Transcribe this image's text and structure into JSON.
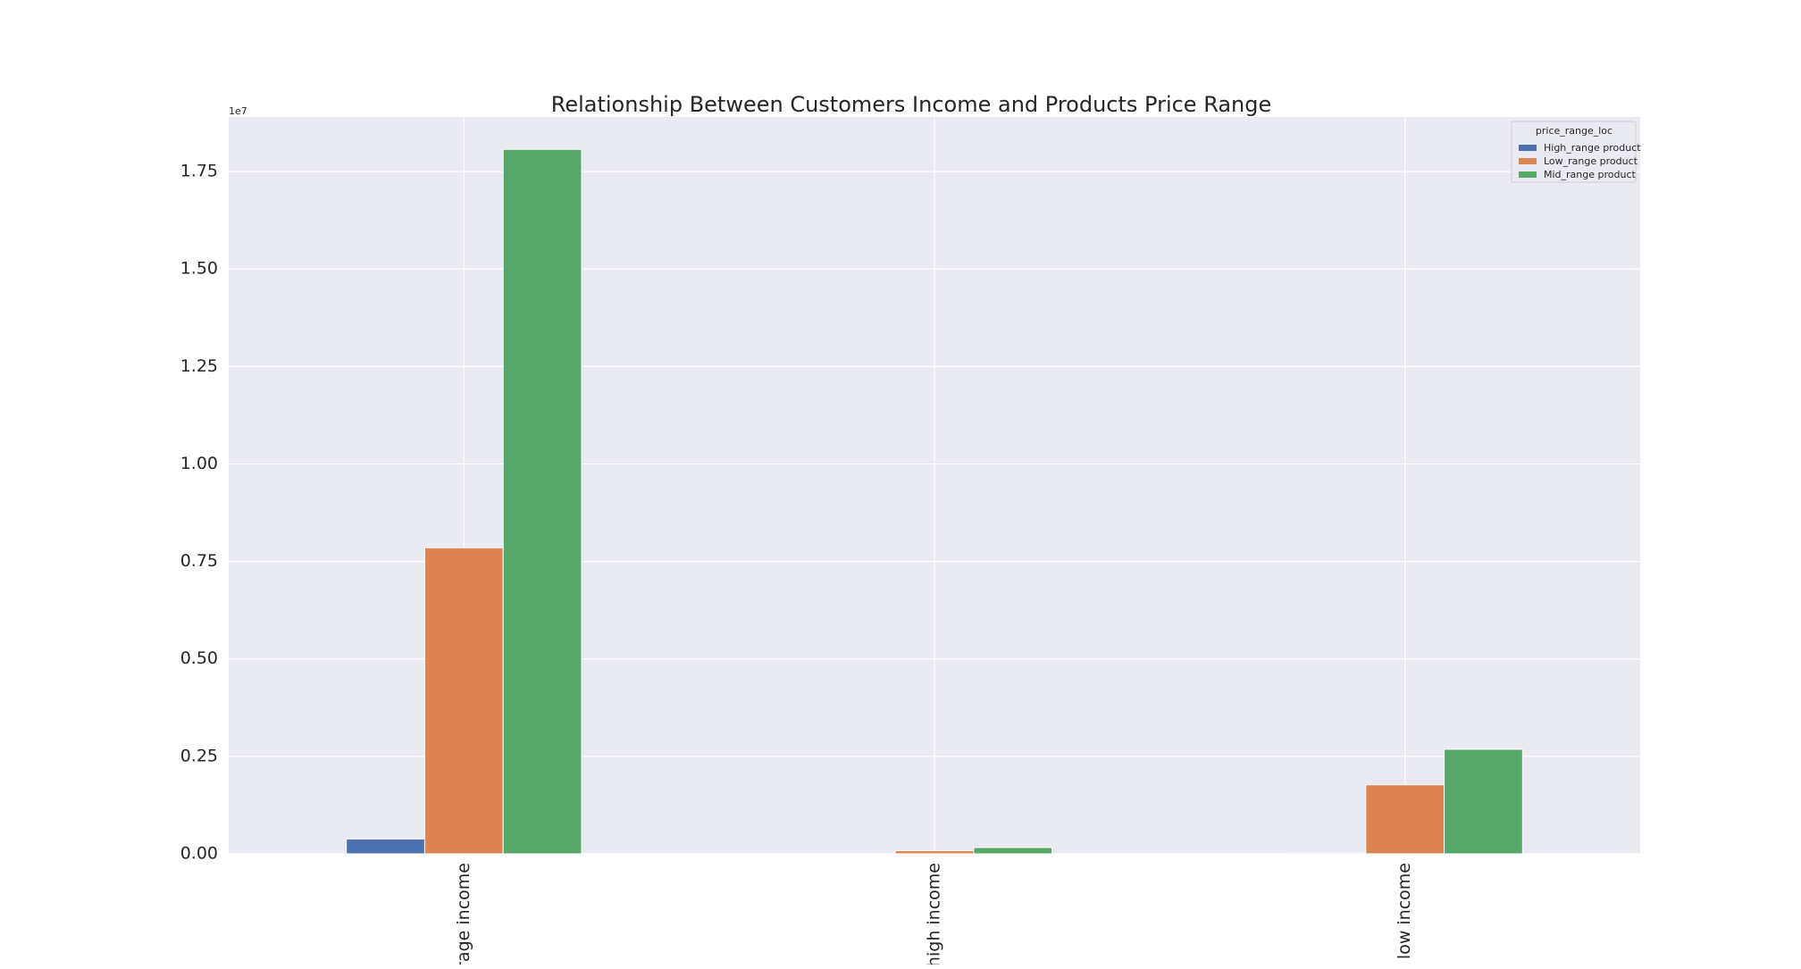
{
  "chart_data": {
    "type": "bar",
    "title": "Relationship Between Customers Income and Products Price Range",
    "xlabel": "",
    "ylabel": "",
    "categories": [
      "average income",
      "high income",
      "low income"
    ],
    "series": [
      {
        "name": "High_range product",
        "values": [
          380000,
          3000,
          25000
        ],
        "color": "#4c72b0"
      },
      {
        "name": "Low_range product",
        "values": [
          7850000,
          80000,
          1770000
        ],
        "color": "#dd8452"
      },
      {
        "name": "Mid_range product",
        "values": [
          18070000,
          160000,
          2680000
        ],
        "color": "#55a868"
      }
    ],
    "ylim": [
      0,
      18900000
    ],
    "yticks": [
      0,
      2500000,
      5000000,
      7500000,
      10000000,
      12500000,
      15000000,
      17500000
    ],
    "ytick_labels": [
      "0.00",
      "0.25",
      "0.50",
      "0.75",
      "1.00",
      "1.25",
      "1.50",
      "1.75"
    ],
    "y_offset_label": "1e7",
    "legend_title": "price_range_loc",
    "legend_position": "top-right",
    "grid": true,
    "background": "#eaeaf2"
  }
}
